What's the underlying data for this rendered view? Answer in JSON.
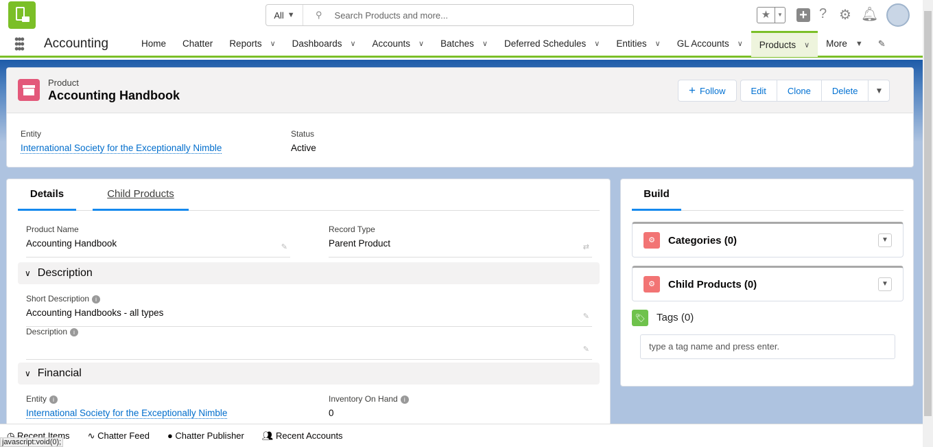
{
  "topbar": {
    "search_scope": "All",
    "search_placeholder": "Search Products and more..."
  },
  "nav": {
    "app_name": "Accounting",
    "items": [
      {
        "label": "Home",
        "dropdown": false
      },
      {
        "label": "Chatter",
        "dropdown": false
      },
      {
        "label": "Reports",
        "dropdown": true
      },
      {
        "label": "Dashboards",
        "dropdown": true
      },
      {
        "label": "Accounts",
        "dropdown": true
      },
      {
        "label": "Batches",
        "dropdown": true
      },
      {
        "label": "Deferred Schedules",
        "dropdown": true
      },
      {
        "label": "Entities",
        "dropdown": true
      },
      {
        "label": "GL Accounts",
        "dropdown": true
      },
      {
        "label": "Products",
        "dropdown": true,
        "active": true
      }
    ],
    "more": "More"
  },
  "record": {
    "type": "Product",
    "title": "Accounting Handbook",
    "buttons": {
      "follow": "Follow",
      "edit": "Edit",
      "clone": "Clone",
      "delete": "Delete"
    },
    "highlights": {
      "entity_label": "Entity",
      "entity_value": "International Society for the Exceptionally Nimble",
      "status_label": "Status",
      "status_value": "Active"
    }
  },
  "details": {
    "tabs": [
      "Details",
      "Child Products"
    ],
    "product_name_label": "Product Name",
    "product_name": "Accounting Handbook",
    "record_type_label": "Record Type",
    "record_type": "Parent Product",
    "section_description": "Description",
    "short_desc_label": "Short Description",
    "short_desc": "Accounting Handbooks - all types",
    "desc_label": "Description",
    "section_financial": "Financial",
    "entity_label": "Entity",
    "entity_value": "International Society for the Exceptionally Nimble",
    "inventory_label": "Inventory On Hand",
    "inventory_value": "0"
  },
  "side": {
    "tab": "Build",
    "categories": "Categories (0)",
    "child_products": "Child Products (0)",
    "tags": "Tags (0)",
    "tag_placeholder": "type a tag name and press enter."
  },
  "footer": {
    "items": [
      "Recent Items",
      "Chatter Feed",
      "Chatter Publisher",
      "Recent Accounts"
    ],
    "status_text": "javascript:void(0);"
  },
  "colors": {
    "brand": "#7bbf27",
    "link": "#006dcc",
    "product_icon": "#e3587a"
  }
}
